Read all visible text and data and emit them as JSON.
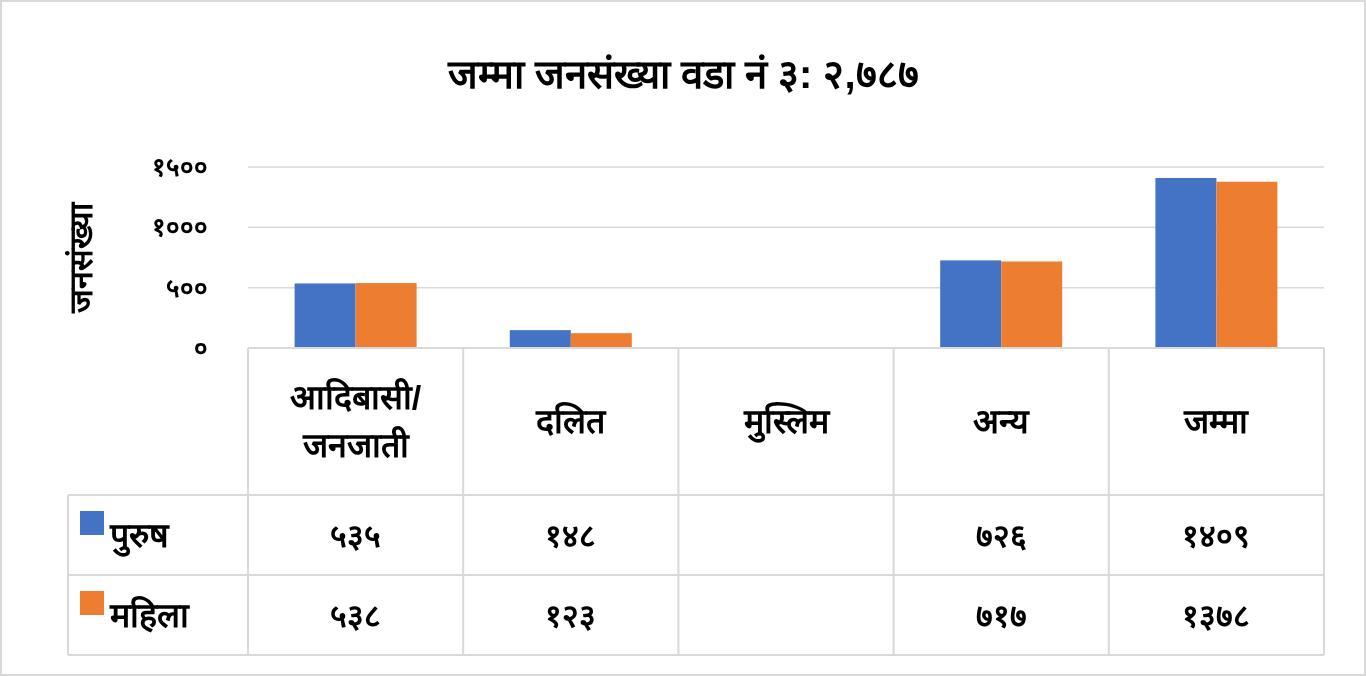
{
  "chart_data": {
    "type": "bar",
    "title": "जम्मा जनसंख्या वडा नं ३: २,७८७",
    "ylabel": "जनसंख्या",
    "categories": [
      "आदिबासी/जनजाती",
      "दलित",
      "मुस्लिम",
      "अन्य",
      "जम्मा"
    ],
    "series": [
      {
        "name": "पुरुष",
        "color": "#4472c4",
        "values": [
          535,
          148,
          null,
          726,
          1409
        ],
        "value_labels": [
          "५३५",
          "१४८",
          null,
          "७२६",
          "१४०९"
        ]
      },
      {
        "name": "महिला",
        "color": "#ed7d31",
        "values": [
          538,
          123,
          null,
          717,
          1378
        ],
        "value_labels": [
          "५३८",
          "१२३",
          null,
          "७१७",
          "१३७८"
        ]
      }
    ],
    "ylim": [
      0,
      1500
    ],
    "yticks": [
      {
        "value": 0,
        "label": "०"
      },
      {
        "value": 500,
        "label": "५००"
      },
      {
        "value": 1000,
        "label": "१०००"
      },
      {
        "value": 1500,
        "label": "१५००"
      }
    ],
    "grid": "y",
    "legend": "bottom"
  }
}
